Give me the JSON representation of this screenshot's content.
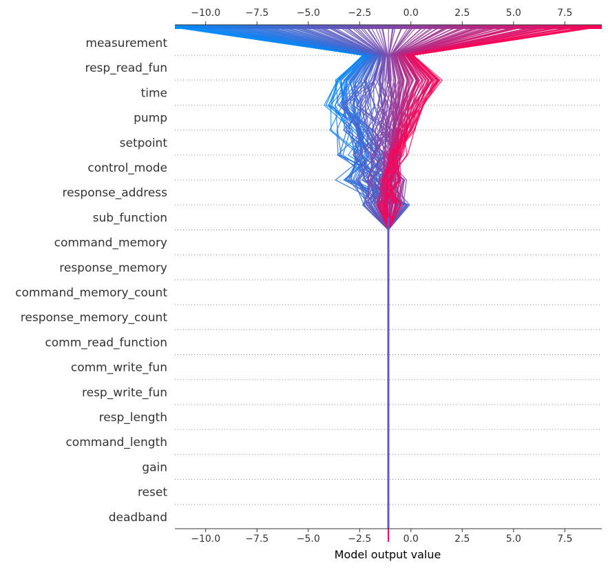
{
  "chart_data": {
    "type": "line",
    "subtype": "shap-decision-plot",
    "title": "",
    "xlabel": "Model output value",
    "ylabel": "",
    "xlim": [
      -11.5,
      9.3
    ],
    "xticks": [
      -10.0,
      -7.5,
      -5.0,
      -2.5,
      0.0,
      2.5,
      5.0,
      7.5
    ],
    "xtick_labels": [
      "−10.0",
      "−7.5",
      "−5.0",
      "−2.5",
      "0.0",
      "2.5",
      "5.0",
      "7.5"
    ],
    "base_value": -1.1,
    "features": [
      "measurement",
      "resp_read_fun",
      "time",
      "pump",
      "setpoint",
      "control_mode",
      "response_address",
      "sub_function",
      "command_memory",
      "response_memory",
      "command_memory_count",
      "response_memory_count",
      "comm_read_function",
      "comm_write_fun",
      "resp_write_fun",
      "resp_length",
      "command_length",
      "gain",
      "reset",
      "deadband"
    ],
    "colormap": [
      "#008bfb",
      "#ff0052"
    ],
    "sample_output_range": [
      -11.5,
      9.3
    ],
    "grid": "dotted-horizontal",
    "legend": "none"
  }
}
